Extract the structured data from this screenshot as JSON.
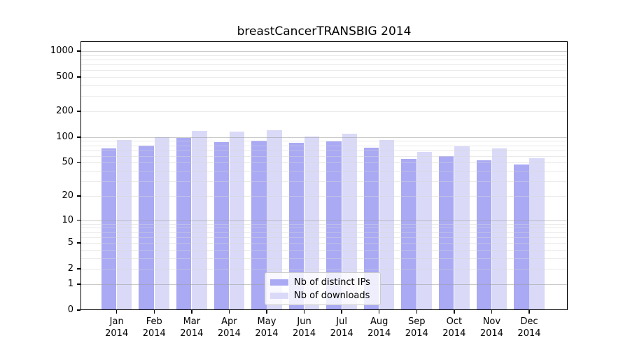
{
  "title": "breastCancerTRANSBIG 2014",
  "chart_data": {
    "type": "bar",
    "title": "breastCancerTRANSBIG 2014",
    "categories": [
      "Jan",
      "Feb",
      "Mar",
      "Apr",
      "May",
      "Jun",
      "Jul",
      "Aug",
      "Sep",
      "Oct",
      "Nov",
      "Dec"
    ],
    "year_label": "2014",
    "series": [
      {
        "name": "Nb of distinct IPs",
        "color": "#a9a9f4",
        "values": [
          74,
          79,
          97,
          87,
          90,
          85,
          89,
          75,
          55,
          60,
          53,
          48
        ]
      },
      {
        "name": "Nb of downloads",
        "color": "#dadaf8",
        "values": [
          93,
          100,
          118,
          115,
          121,
          102,
          109,
          92,
          67,
          78,
          74,
          57
        ]
      }
    ],
    "xlabel": "",
    "ylabel": "",
    "yscale": "log1p",
    "y_ticks": [
      0,
      1,
      2,
      5,
      10,
      20,
      50,
      100,
      200,
      500,
      1000
    ],
    "y_major_gridlines": [
      1,
      10,
      100,
      1000
    ],
    "ylim": [
      0,
      1300
    ],
    "grid": true,
    "legend_position": "lower-center"
  }
}
